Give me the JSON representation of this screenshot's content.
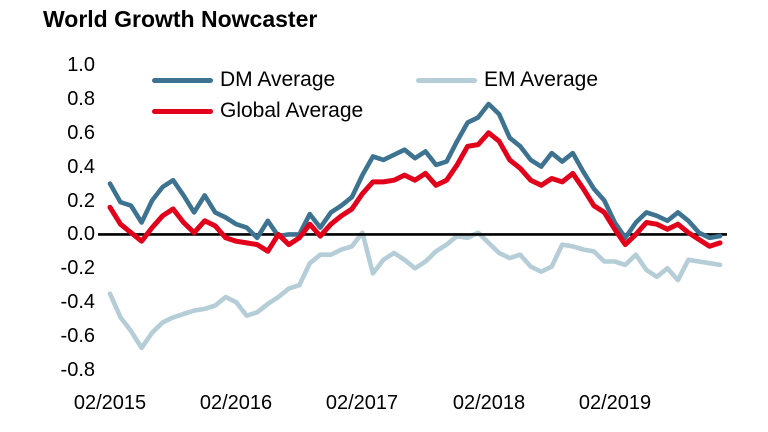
{
  "title": "World Growth Nowcaster",
  "legend": [
    {
      "id": "dm",
      "label": "DM Average",
      "color": "#3d7390"
    },
    {
      "id": "em",
      "label": "EM Average",
      "color": "#b5cdd6"
    },
    {
      "id": "global",
      "label": "Global Average",
      "color": "#e2001a"
    }
  ],
  "chart_data": {
    "type": "line",
    "title": "World Growth Nowcaster",
    "xlabel": "",
    "ylabel": "",
    "grid": false,
    "zero_line": true,
    "legend_position": "top",
    "ylim": [
      -0.8,
      1.0
    ],
    "y_ticks": [
      1.0,
      0.8,
      0.6,
      0.4,
      0.2,
      0.0,
      -0.2,
      -0.4,
      -0.6,
      -0.8
    ],
    "y_tick_labels": [
      "1.0",
      "0.8",
      "0.6",
      "0.4",
      "0.2",
      "0.0",
      "-0.2",
      "-0.4",
      "-0.6",
      "-0.8"
    ],
    "x_tick_labels": [
      "02/2015",
      "02/2016",
      "02/2017",
      "02/2018",
      "02/2019"
    ],
    "x_tick_month_indices": [
      0,
      12,
      24,
      36,
      48
    ],
    "x": [
      "02/2015",
      "03/2015",
      "04/2015",
      "05/2015",
      "06/2015",
      "07/2015",
      "08/2015",
      "09/2015",
      "10/2015",
      "11/2015",
      "12/2015",
      "01/2016",
      "02/2016",
      "03/2016",
      "04/2016",
      "05/2016",
      "06/2016",
      "07/2016",
      "08/2016",
      "09/2016",
      "10/2016",
      "11/2016",
      "12/2016",
      "01/2017",
      "02/2017",
      "03/2017",
      "04/2017",
      "05/2017",
      "06/2017",
      "07/2017",
      "08/2017",
      "09/2017",
      "10/2017",
      "11/2017",
      "12/2017",
      "01/2018",
      "02/2018",
      "03/2018",
      "04/2018",
      "05/2018",
      "06/2018",
      "07/2018",
      "08/2018",
      "09/2018",
      "10/2018",
      "11/2018",
      "12/2018",
      "01/2019",
      "02/2019",
      "03/2019",
      "04/2019",
      "05/2019",
      "06/2019",
      "07/2019",
      "08/2019",
      "09/2019",
      "10/2019",
      "11/2019",
      "12/2019"
    ],
    "series": [
      {
        "name": "EM Average",
        "color": "#b5cdd6",
        "values": [
          -0.35,
          -0.49,
          -0.57,
          -0.67,
          -0.58,
          -0.52,
          -0.49,
          -0.47,
          -0.45,
          -0.44,
          -0.42,
          -0.37,
          -0.4,
          -0.48,
          -0.46,
          -0.41,
          -0.37,
          -0.32,
          -0.3,
          -0.17,
          -0.12,
          -0.12,
          -0.09,
          -0.07,
          0.01,
          -0.23,
          -0.15,
          -0.11,
          -0.15,
          -0.2,
          -0.16,
          -0.1,
          -0.06,
          -0.01,
          -0.02,
          0.01,
          -0.05,
          -0.11,
          -0.14,
          -0.12,
          -0.19,
          -0.22,
          -0.19,
          -0.06,
          -0.07,
          -0.09,
          -0.1,
          -0.16,
          -0.16,
          -0.18,
          -0.12,
          -0.21,
          -0.25,
          -0.2,
          -0.27,
          -0.15,
          -0.16,
          -0.17,
          -0.18
        ]
      },
      {
        "name": "DM Average",
        "color": "#3d7390",
        "values": [
          0.3,
          0.19,
          0.17,
          0.07,
          0.2,
          0.28,
          0.32,
          0.23,
          0.13,
          0.23,
          0.13,
          0.1,
          0.06,
          0.04,
          -0.02,
          0.08,
          -0.01,
          0.0,
          0.0,
          0.12,
          0.04,
          0.13,
          0.17,
          0.22,
          0.35,
          0.46,
          0.44,
          0.47,
          0.5,
          0.45,
          0.49,
          0.41,
          0.43,
          0.55,
          0.66,
          0.69,
          0.77,
          0.71,
          0.57,
          0.52,
          0.44,
          0.4,
          0.48,
          0.43,
          0.48,
          0.37,
          0.27,
          0.2,
          0.07,
          -0.02,
          0.07,
          0.13,
          0.11,
          0.08,
          0.13,
          0.08,
          0.01,
          -0.02,
          -0.01
        ]
      },
      {
        "name": "Global Average",
        "color": "#e2001a",
        "values": [
          0.16,
          0.06,
          0.01,
          -0.04,
          0.04,
          0.11,
          0.15,
          0.07,
          0.01,
          0.08,
          0.05,
          -0.02,
          -0.04,
          -0.05,
          -0.06,
          -0.1,
          0.0,
          -0.06,
          -0.02,
          0.06,
          -0.01,
          0.06,
          0.11,
          0.15,
          0.24,
          0.31,
          0.31,
          0.32,
          0.35,
          0.32,
          0.36,
          0.29,
          0.32,
          0.41,
          0.52,
          0.53,
          0.6,
          0.55,
          0.44,
          0.39,
          0.32,
          0.29,
          0.33,
          0.31,
          0.36,
          0.27,
          0.17,
          0.13,
          0.03,
          -0.06,
          0.0,
          0.07,
          0.06,
          0.03,
          0.06,
          0.01,
          -0.03,
          -0.07,
          -0.05
        ]
      }
    ]
  }
}
